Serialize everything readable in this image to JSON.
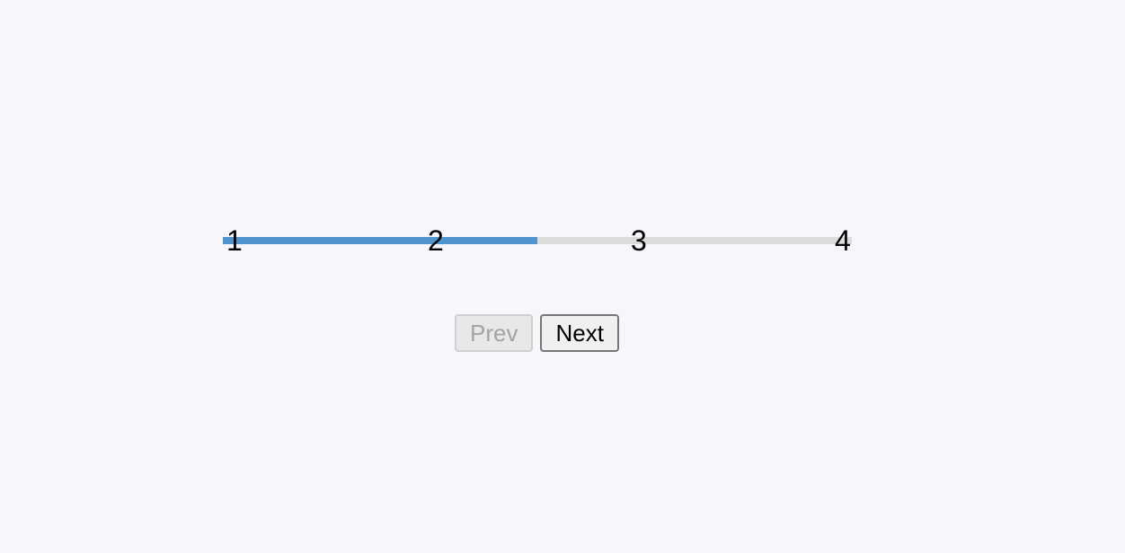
{
  "stepper": {
    "steps": [
      "1",
      "2",
      "3",
      "4"
    ],
    "current_step": 2,
    "progress_fraction": 0.5,
    "fill_color": "#4f94cf",
    "track_color": "#dcdcdc"
  },
  "controls": {
    "prev_label": "Prev",
    "prev_disabled": true,
    "next_label": "Next"
  }
}
